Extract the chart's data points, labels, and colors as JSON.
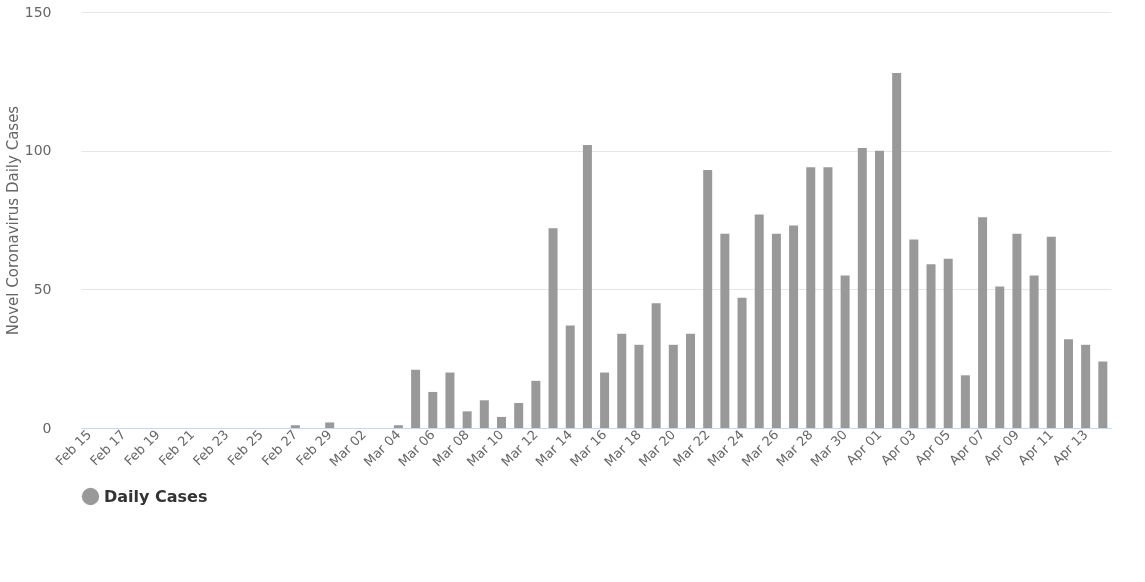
{
  "chart_data": {
    "type": "bar",
    "ylabel": "Novel Coronavirus Daily Cases",
    "categories": [
      "Feb 15",
      null,
      "Feb 17",
      null,
      "Feb 19",
      null,
      "Feb 21",
      null,
      "Feb 23",
      null,
      "Feb 25",
      null,
      "Feb 27",
      null,
      "Feb 29",
      null,
      "Mar 02",
      null,
      "Mar 04",
      null,
      "Mar 06",
      null,
      "Mar 08",
      null,
      "Mar 10",
      null,
      "Mar 12",
      null,
      "Mar 14",
      null,
      "Mar 16",
      null,
      "Mar 18",
      null,
      "Mar 20",
      null,
      "Mar 22",
      null,
      "Mar 24",
      null,
      "Mar 26",
      null,
      "Mar 28",
      null,
      "Mar 30",
      null,
      "Apr 01",
      null,
      "Apr 03",
      null,
      "Apr 05",
      null,
      "Apr 07",
      null,
      "Apr 09",
      null,
      "Apr 11",
      null,
      "Apr 13",
      null
    ],
    "series": [
      {
        "name": "Daily Cases",
        "color": "#999999",
        "values": [
          0,
          0,
          0,
          0,
          0,
          0,
          0,
          0,
          0,
          0,
          0,
          0,
          1,
          0,
          2,
          0,
          0,
          0,
          1,
          21,
          13,
          20,
          6,
          10,
          4,
          9,
          17,
          72,
          37,
          102,
          20,
          34,
          30,
          45,
          30,
          34,
          93,
          70,
          47,
          77,
          70,
          73,
          94,
          94,
          55,
          101,
          100,
          128,
          68,
          59,
          61,
          19,
          76,
          51,
          70,
          55,
          69,
          32,
          30,
          24
        ]
      }
    ],
    "ylim": [
      0,
      150
    ],
    "yticks": [
      0,
      50,
      100,
      150
    ],
    "grid": "y",
    "legend": "bottom"
  }
}
